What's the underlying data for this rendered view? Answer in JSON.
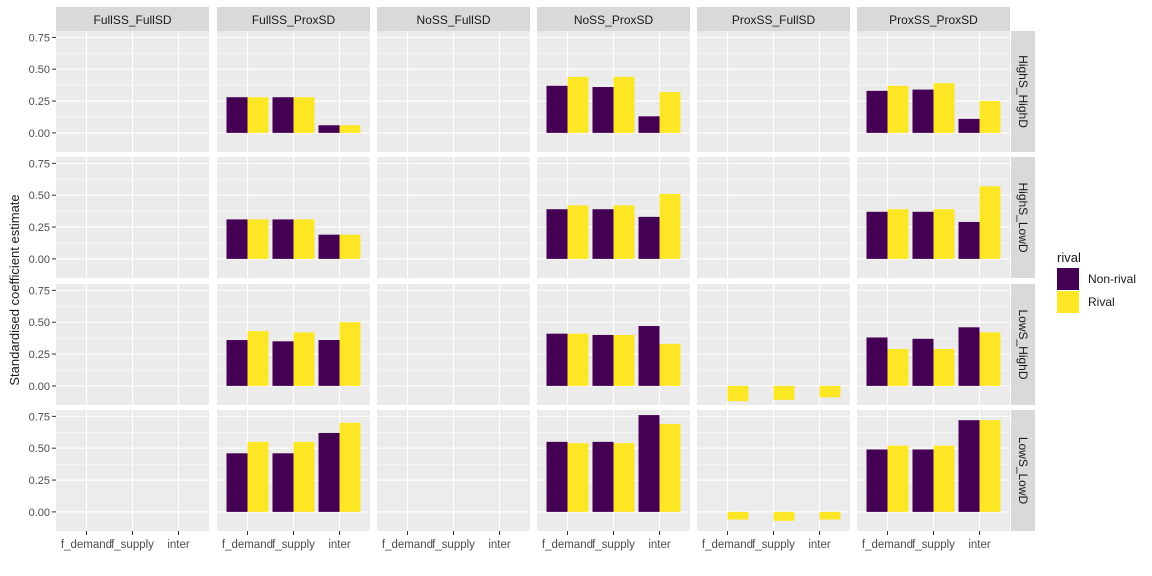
{
  "chart_data": {
    "type": "bar",
    "facet_columns": [
      "FullSS_FullSD",
      "FullSS_ProxSD",
      "NoSS_FullSD",
      "NoSS_ProxSD",
      "ProxSS_FullSD",
      "ProxSS_ProxSD"
    ],
    "facet_rows": [
      "HighS_HighD",
      "HighS_LowD",
      "LowS_HighD",
      "LowS_LowD"
    ],
    "categories": [
      "f_demand",
      "f_supply",
      "inter"
    ],
    "x_tick_labels": [
      "f_demand",
      "f_supply",
      "inter"
    ],
    "ylabel": "Standardised coefficient estimate",
    "ylim": [
      -0.15,
      0.8
    ],
    "yticks": [
      0.0,
      0.25,
      0.5,
      0.75
    ],
    "ytick_labels": [
      "0.00",
      "0.25",
      "0.50",
      "0.75"
    ],
    "grid": true,
    "legend": {
      "title": "rival",
      "position": "right",
      "entries": [
        {
          "label": "Non-rival",
          "color": "#440154"
        },
        {
          "label": "Rival",
          "color": "#FDE725"
        }
      ]
    },
    "series_colors": {
      "Non-rival": "#440154",
      "Rival": "#FDE725"
    },
    "panels": {
      "HighS_HighD": {
        "FullSS_FullSD": null,
        "FullSS_ProxSD": {
          "Non-rival": [
            0.28,
            0.28,
            0.06
          ],
          "Rival": [
            0.28,
            0.28,
            0.06
          ]
        },
        "NoSS_FullSD": null,
        "NoSS_ProxSD": {
          "Non-rival": [
            0.37,
            0.36,
            0.13
          ],
          "Rival": [
            0.44,
            0.44,
            0.32
          ]
        },
        "ProxSS_FullSD": null,
        "ProxSS_ProxSD": {
          "Non-rival": [
            0.33,
            0.34,
            0.11
          ],
          "Rival": [
            0.37,
            0.39,
            0.25
          ]
        }
      },
      "HighS_LowD": {
        "FullSS_FullSD": null,
        "FullSS_ProxSD": {
          "Non-rival": [
            0.31,
            0.31,
            0.19
          ],
          "Rival": [
            0.31,
            0.31,
            0.19
          ]
        },
        "NoSS_FullSD": null,
        "NoSS_ProxSD": {
          "Non-rival": [
            0.39,
            0.39,
            0.33
          ],
          "Rival": [
            0.42,
            0.42,
            0.51
          ]
        },
        "ProxSS_FullSD": null,
        "ProxSS_ProxSD": {
          "Non-rival": [
            0.37,
            0.37,
            0.29
          ],
          "Rival": [
            0.39,
            0.39,
            0.57
          ]
        }
      },
      "LowS_HighD": {
        "FullSS_FullSD": null,
        "FullSS_ProxSD": {
          "Non-rival": [
            0.36,
            0.35,
            0.36
          ],
          "Rival": [
            0.43,
            0.42,
            0.5
          ]
        },
        "NoSS_FullSD": null,
        "NoSS_ProxSD": {
          "Non-rival": [
            0.41,
            0.4,
            0.47
          ],
          "Rival": [
            0.41,
            0.4,
            0.33
          ]
        },
        "ProxSS_FullSD": {
          "Non-rival": [
            0.0,
            0.0,
            0.0
          ],
          "Rival": [
            -0.12,
            -0.11,
            -0.09
          ]
        },
        "ProxSS_ProxSD": {
          "Non-rival": [
            0.38,
            0.37,
            0.46
          ],
          "Rival": [
            0.29,
            0.29,
            0.42
          ]
        }
      },
      "LowS_LowD": {
        "FullSS_FullSD": null,
        "FullSS_ProxSD": {
          "Non-rival": [
            0.46,
            0.46,
            0.62
          ],
          "Rival": [
            0.55,
            0.55,
            0.7
          ]
        },
        "NoSS_FullSD": null,
        "NoSS_ProxSD": {
          "Non-rival": [
            0.55,
            0.55,
            0.76
          ],
          "Rival": [
            0.54,
            0.54,
            0.69
          ]
        },
        "ProxSS_FullSD": {
          "Non-rival": [
            0.0,
            0.0,
            0.0
          ],
          "Rival": [
            -0.06,
            -0.07,
            -0.06
          ]
        },
        "ProxSS_ProxSD": {
          "Non-rival": [
            0.49,
            0.49,
            0.72
          ],
          "Rival": [
            0.52,
            0.52,
            0.72
          ]
        }
      }
    }
  }
}
